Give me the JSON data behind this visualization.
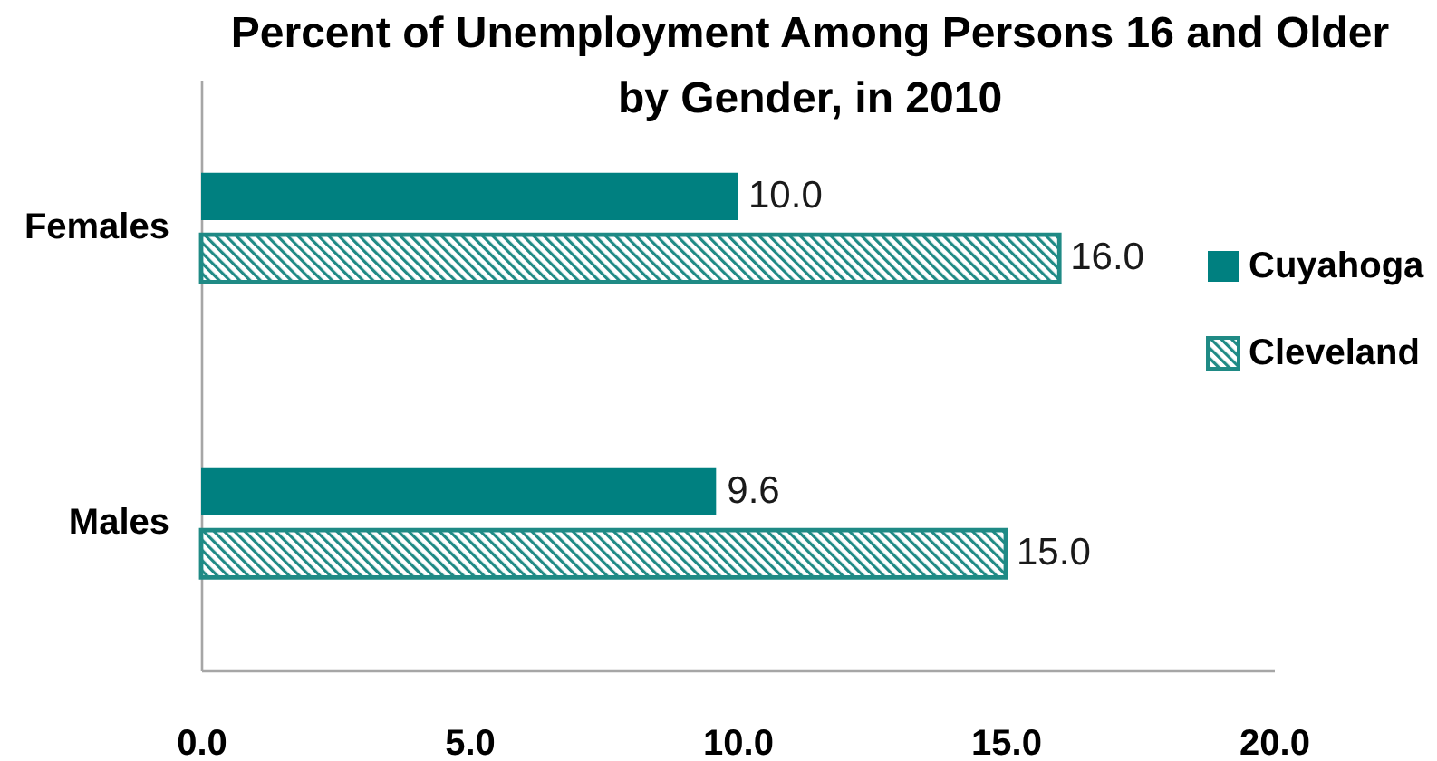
{
  "chart_data": {
    "type": "bar",
    "orientation": "horizontal",
    "title": "Percent of Unemployment Among Persons 16 and Older by Gender, in 2010",
    "categories": [
      "Females",
      "Males"
    ],
    "series": [
      {
        "name": "Cuyahoga",
        "color": "#008080",
        "values": [
          10.0,
          9.6
        ],
        "value_labels": [
          "10.0",
          "9.6"
        ]
      },
      {
        "name": "Cleveland",
        "color": "#1f8a85",
        "values": [
          16.0,
          15.0
        ],
        "value_labels": [
          "16.0",
          "15.0"
        ]
      }
    ],
    "xlim": [
      0,
      20
    ],
    "xticks": [
      {
        "value": 0,
        "label": "0.0"
      },
      {
        "value": 5,
        "label": "5.0"
      },
      {
        "value": 10,
        "label": "10.0"
      },
      {
        "value": 15,
        "label": "15.0"
      },
      {
        "value": 20,
        "label": "20.0"
      }
    ],
    "grid": false,
    "legend": "right"
  }
}
